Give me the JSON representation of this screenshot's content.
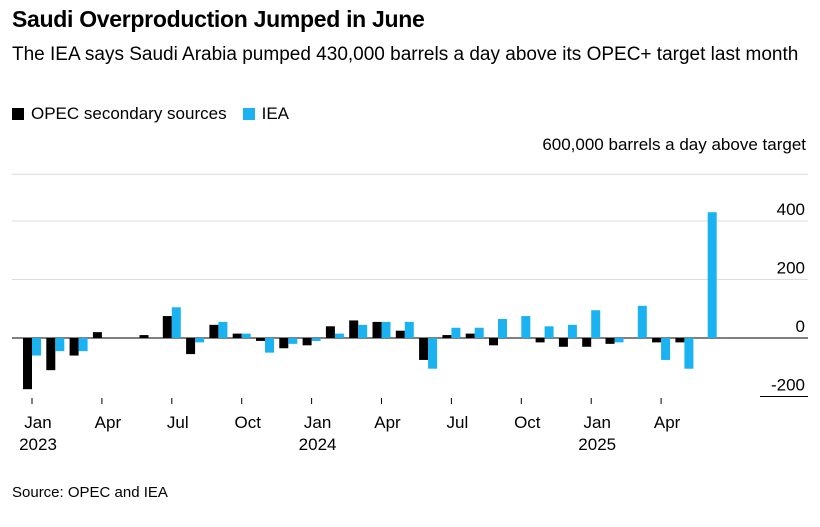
{
  "header": {
    "title": "Saudi Overproduction Jumped in June",
    "subtitle": "The IEA says Saudi Arabia pumped 430,000 barrels a day above its OPEC+ target last month",
    "unit_label": "600,000 barrels a day above target"
  },
  "footer": {
    "source": "Source: OPEC and IEA"
  },
  "colors": {
    "opec": "#000000",
    "iea": "#1ab2f0",
    "grid": "#dcdcdc",
    "axis": "#000000"
  },
  "chart_data": {
    "type": "bar",
    "title": "Saudi Overproduction Jumped in June",
    "ylabel": "600,000 barrels a day above target",
    "ylim": [
      -200,
      600
    ],
    "yticks": [
      {
        "value": 400,
        "label": "400"
      },
      {
        "value": 200,
        "label": "200"
      },
      {
        "value": 0,
        "label": "0"
      },
      {
        "value": -200,
        "label": "-200"
      }
    ],
    "grid": true,
    "legend_position": "top-left",
    "x_tick_labels": [
      {
        "index": 0,
        "month": "Jan",
        "year": "2023"
      },
      {
        "index": 3,
        "month": "Apr",
        "year": ""
      },
      {
        "index": 6,
        "month": "Jul",
        "year": ""
      },
      {
        "index": 9,
        "month": "Oct",
        "year": ""
      },
      {
        "index": 12,
        "month": "Jan",
        "year": "2024"
      },
      {
        "index": 15,
        "month": "Apr",
        "year": ""
      },
      {
        "index": 18,
        "month": "Jul",
        "year": ""
      },
      {
        "index": 21,
        "month": "Oct",
        "year": ""
      },
      {
        "index": 24,
        "month": "Jan",
        "year": "2025"
      },
      {
        "index": 27,
        "month": "Apr",
        "year": ""
      }
    ],
    "categories": [
      "Jan 2023",
      "Feb 2023",
      "Mar 2023",
      "Apr 2023",
      "May 2023",
      "Jun 2023",
      "Jul 2023",
      "Aug 2023",
      "Sep 2023",
      "Oct 2023",
      "Nov 2023",
      "Dec 2023",
      "Jan 2024",
      "Feb 2024",
      "Mar 2024",
      "Apr 2024",
      "May 2024",
      "Jun 2024",
      "Jul 2024",
      "Aug 2024",
      "Sep 2024",
      "Oct 2024",
      "Nov 2024",
      "Dec 2024",
      "Jan 2025",
      "Feb 2025",
      "Mar 2025",
      "Apr 2025",
      "May 2025",
      "Jun 2025"
    ],
    "series": [
      {
        "name": "OPEC secondary sources",
        "values": [
          -175,
          -110,
          -60,
          20,
          0,
          10,
          75,
          -55,
          45,
          15,
          -10,
          -35,
          -25,
          40,
          60,
          55,
          25,
          -75,
          10,
          15,
          -25,
          0,
          -15,
          -30,
          -30,
          -20,
          0,
          -15,
          -15,
          0
        ]
      },
      {
        "name": "IEA",
        "values": [
          -60,
          -45,
          -45,
          0,
          0,
          0,
          105,
          -15,
          55,
          15,
          -50,
          -20,
          -10,
          15,
          45,
          55,
          55,
          -105,
          35,
          35,
          65,
          75,
          40,
          45,
          95,
          -15,
          110,
          -75,
          -105,
          430
        ]
      }
    ]
  }
}
